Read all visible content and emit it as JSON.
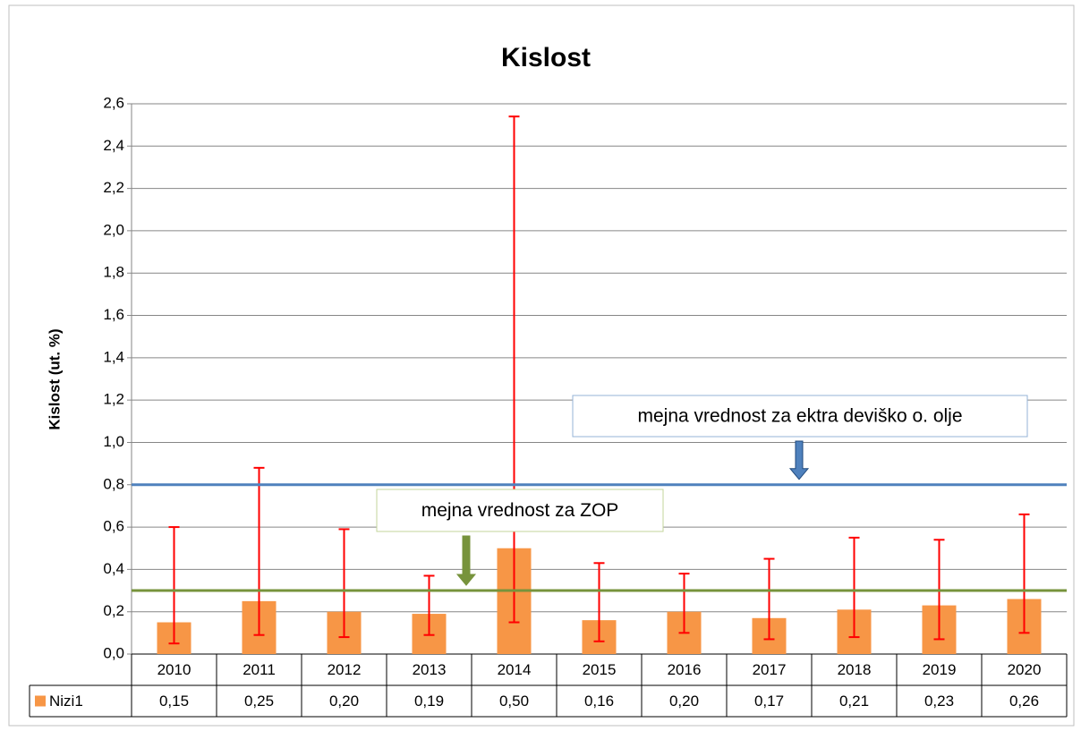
{
  "chart_data": {
    "type": "bar",
    "title": "Kislost",
    "y_label": "Kislost (ut. %)",
    "categories": [
      "2010",
      "2011",
      "2012",
      "2013",
      "2014",
      "2015",
      "2016",
      "2017",
      "2018",
      "2019",
      "2020"
    ],
    "series": [
      {
        "name": "Nizi1",
        "color": "#f79646",
        "values": [
          0.15,
          0.25,
          0.2,
          0.19,
          0.5,
          0.16,
          0.2,
          0.17,
          0.21,
          0.23,
          0.26
        ],
        "value_labels": [
          "0,15",
          "0,25",
          "0,20",
          "0,19",
          "0,50",
          "0,16",
          "0,20",
          "0,17",
          "0,21",
          "0,23",
          "0,26"
        ],
        "min": [
          0.05,
          0.09,
          0.08,
          0.09,
          0.15,
          0.06,
          0.1,
          0.07,
          0.08,
          0.07,
          0.1
        ],
        "max": [
          0.6,
          0.88,
          0.59,
          0.37,
          2.54,
          0.43,
          0.38,
          0.45,
          0.55,
          0.54,
          0.66
        ]
      }
    ],
    "error_color": "#ff0000",
    "ylim": [
      0,
      2.6
    ],
    "yticks": [
      {
        "value": 0,
        "label": "0,0"
      },
      {
        "value": 0.2,
        "label": "0,2"
      },
      {
        "value": 0.4,
        "label": "0,4"
      },
      {
        "value": 0.6,
        "label": "0,6"
      },
      {
        "value": 0.8,
        "label": "0,8"
      },
      {
        "value": 1.0,
        "label": "1,0"
      },
      {
        "value": 1.2,
        "label": "1,2"
      },
      {
        "value": 1.4,
        "label": "1,4"
      },
      {
        "value": 1.6,
        "label": "1,6"
      },
      {
        "value": 1.8,
        "label": "1,8"
      },
      {
        "value": 2.0,
        "label": "2,0"
      },
      {
        "value": 2.2,
        "label": "2,2"
      },
      {
        "value": 2.4,
        "label": "2,4"
      },
      {
        "value": 2.6,
        "label": "2,6"
      }
    ],
    "grid": true,
    "reference_lines": [
      {
        "value": 0.8,
        "color": "#4f81bd",
        "label_color": "#1f497d",
        "label": "mejna vrednost za ektra deviško o. olje"
      },
      {
        "value": 0.3,
        "color": "#77933c",
        "label_color": "#77933c",
        "label": "mejna vrednost za ZOP"
      }
    ]
  }
}
